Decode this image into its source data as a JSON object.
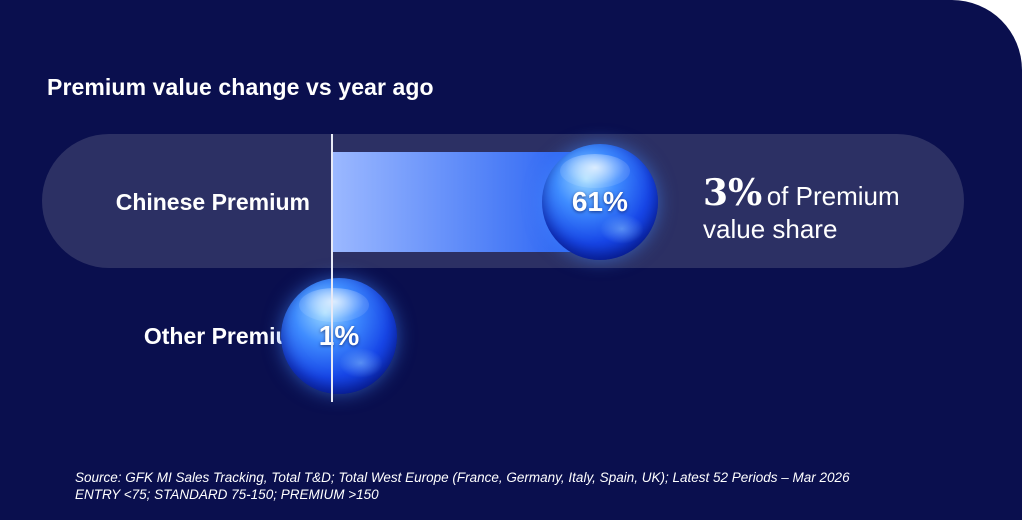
{
  "chart_data": {
    "type": "bar",
    "title": "Premium value change vs year ago",
    "categories": [
      "Chinese Premium",
      "Other Premium"
    ],
    "values": [
      61,
      1
    ],
    "value_labels": [
      "61%",
      "1%"
    ],
    "unit": "%",
    "orientation": "horizontal",
    "xlim": [
      0,
      80
    ],
    "grid": false,
    "legend": "none"
  },
  "annotation": {
    "highlight": "3%",
    "text_line1": "of Premium",
    "text_line2": "value share"
  },
  "source_lines": [
    "Source: GFK MI Sales Tracking, Total T&D; Total West Europe (France, Germany, Italy, Spain, UK); Latest 52 Periods – Mar 2026",
    "ENTRY <75; STANDARD 75-150; PREMIUM >150"
  ],
  "colors": {
    "background": "#0a0f4e",
    "band": "#2c3064",
    "bar_start": "#9bb8ff",
    "bar_end": "#1f5cf2",
    "text": "#ffffff"
  }
}
